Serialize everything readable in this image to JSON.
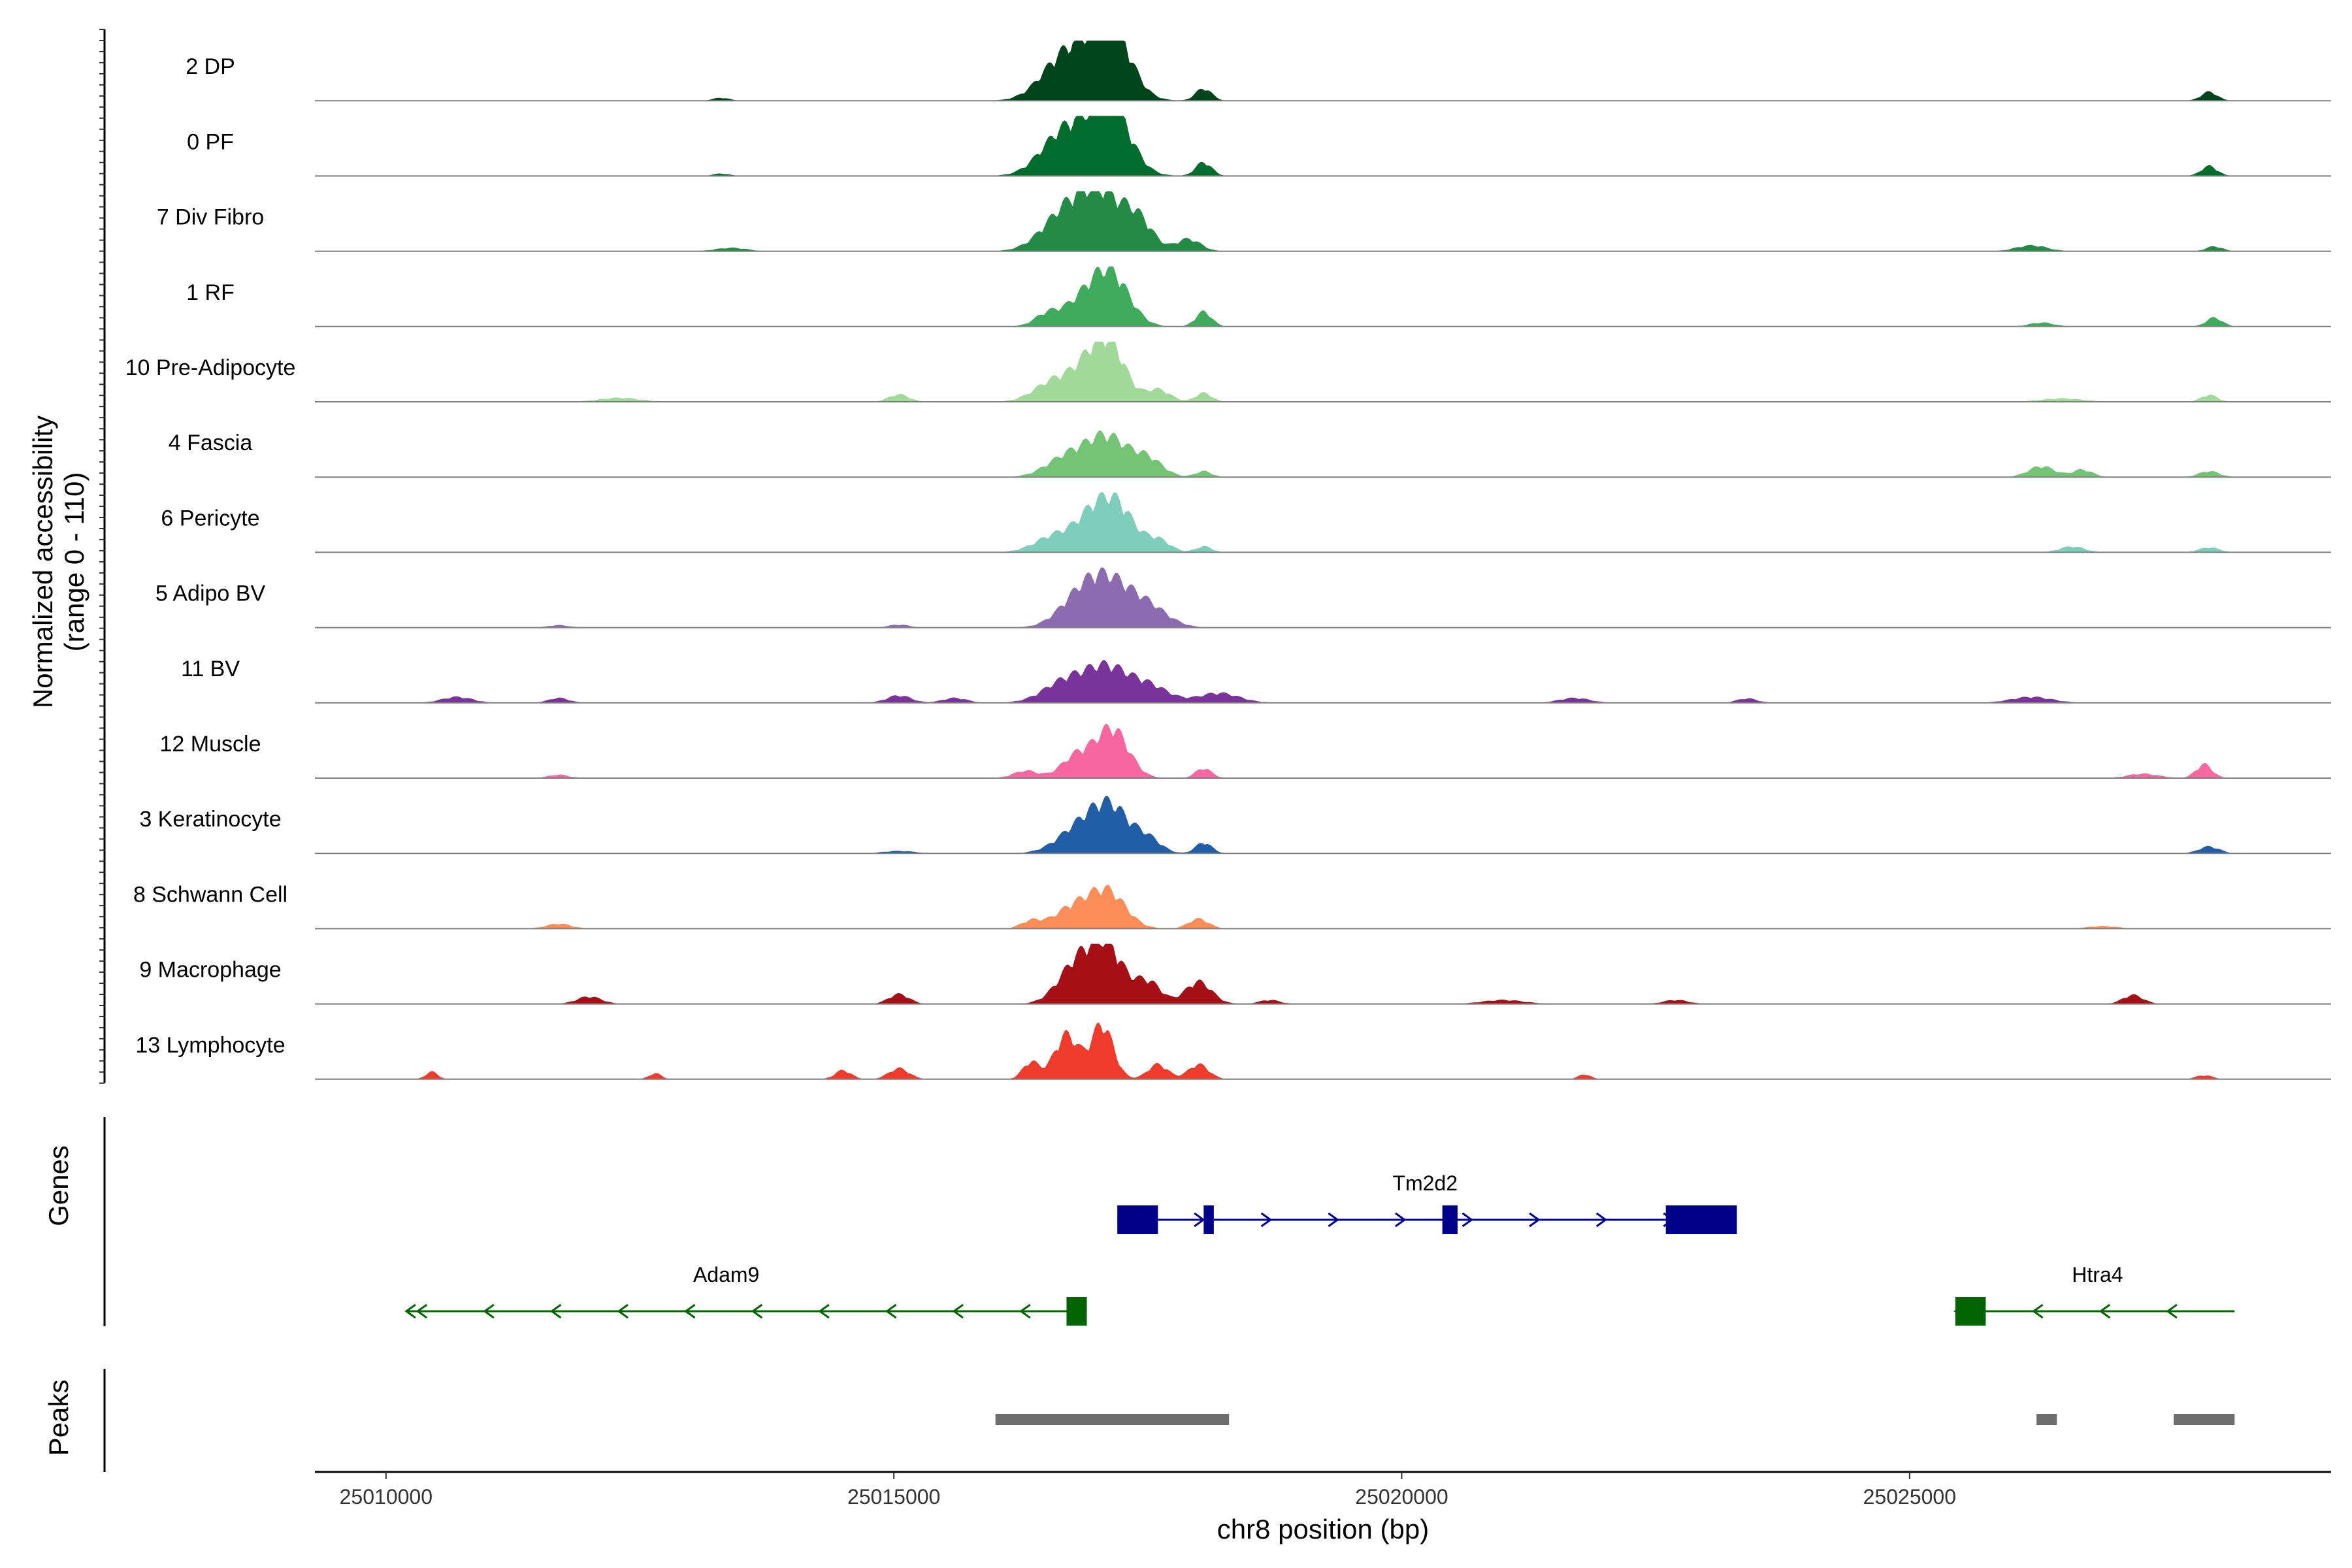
{
  "chart_data": {
    "type": "area",
    "ylabel_line1": "Normalized accessibility",
    "ylabel_line2": "(range 0 - 110)",
    "ylim": [
      0,
      110
    ],
    "xlabel": "chr8 position (bp)",
    "xlim": [
      25009300,
      25029150
    ],
    "x_range_data": [
      25010200,
      25028200
    ],
    "xticks": [
      {
        "value": 25010000,
        "label": "25010000"
      },
      {
        "value": 25015000,
        "label": "25015000"
      },
      {
        "value": 25020000,
        "label": "25020000"
      },
      {
        "value": 25025000,
        "label": "25025000"
      }
    ],
    "series": [
      {
        "name": "2 DP",
        "color": "#00441b",
        "peaks": [
          [
            25016900,
            95,
            280
          ],
          [
            25017150,
            100,
            180
          ],
          [
            25016600,
            35,
            200
          ],
          [
            25018050,
            25,
            80
          ],
          [
            25027950,
            18,
            80
          ],
          [
            25013300,
            6,
            80
          ]
        ]
      },
      {
        "name": "0 PF",
        "color": "#006d2c",
        "peaks": [
          [
            25016900,
            85,
            280
          ],
          [
            25017150,
            95,
            180
          ],
          [
            25016600,
            40,
            200
          ],
          [
            25018050,
            28,
            80
          ],
          [
            25027950,
            20,
            80
          ],
          [
            25013300,
            5,
            80
          ]
        ]
      },
      {
        "name": "7 Div Fibro",
        "color": "#238b45",
        "peaks": [
          [
            25016700,
            80,
            230
          ],
          [
            25017050,
            100,
            200
          ],
          [
            25017400,
            60,
            150
          ],
          [
            25017900,
            25,
            120
          ],
          [
            25026200,
            12,
            150
          ],
          [
            25028000,
            10,
            80
          ],
          [
            25013400,
            7,
            150
          ]
        ]
      },
      {
        "name": "1 RF",
        "color": "#41ab5d",
        "peaks": [
          [
            25016900,
            55,
            220
          ],
          [
            25017150,
            85,
            180
          ],
          [
            25016500,
            20,
            120
          ],
          [
            25018050,
            30,
            80
          ],
          [
            25028000,
            18,
            80
          ],
          [
            25026300,
            8,
            120
          ]
        ]
      },
      {
        "name": "10 Pre-Adipocyte",
        "color": "#a1d99b",
        "peaks": [
          [
            25016600,
            45,
            200
          ],
          [
            25016950,
            70,
            160
          ],
          [
            25017150,
            90,
            150
          ],
          [
            25017600,
            25,
            120
          ],
          [
            25018050,
            18,
            80
          ],
          [
            25015050,
            15,
            100
          ],
          [
            25012300,
            8,
            200
          ],
          [
            25027950,
            14,
            80
          ],
          [
            25026500,
            7,
            200
          ]
        ]
      },
      {
        "name": "4 Fascia",
        "color": "#74c476",
        "peaks": [
          [
            25016700,
            40,
            200
          ],
          [
            25017100,
            80,
            200
          ],
          [
            25017500,
            35,
            150
          ],
          [
            25018050,
            12,
            80
          ],
          [
            25026300,
            22,
            130
          ],
          [
            25026700,
            15,
            100
          ],
          [
            25027950,
            12,
            100
          ]
        ]
      },
      {
        "name": "6 Pericyte",
        "color": "#7fcdbb",
        "peaks": [
          [
            25016600,
            35,
            200
          ],
          [
            25016950,
            60,
            160
          ],
          [
            25017200,
            90,
            170
          ],
          [
            25017600,
            25,
            120
          ],
          [
            25018050,
            12,
            80
          ],
          [
            25026600,
            12,
            120
          ],
          [
            25027950,
            10,
            100
          ]
        ]
      },
      {
        "name": "5 Adipo BV",
        "color": "#8c6bb1",
        "peaks": [
          [
            25016800,
            45,
            200
          ],
          [
            25017100,
            90,
            220
          ],
          [
            25017500,
            40,
            200
          ],
          [
            25015050,
            6,
            100
          ],
          [
            25011700,
            5,
            100
          ]
        ]
      },
      {
        "name": "11 BV",
        "color": "#7a339a",
        "peaks": [
          [
            25016700,
            45,
            220
          ],
          [
            25017100,
            65,
            200
          ],
          [
            25017500,
            35,
            200
          ],
          [
            25018200,
            20,
            200
          ],
          [
            25015050,
            15,
            120
          ],
          [
            25015600,
            10,
            120
          ],
          [
            25010700,
            12,
            150
          ],
          [
            25011700,
            10,
            100
          ],
          [
            25021700,
            10,
            150
          ],
          [
            25026200,
            12,
            200
          ],
          [
            25023400,
            9,
            100
          ]
        ]
      },
      {
        "name": "12 Muscle",
        "color": "#f768a1",
        "peaks": [
          [
            25016800,
            45,
            150
          ],
          [
            25017150,
            100,
            160
          ],
          [
            25016300,
            15,
            120
          ],
          [
            25018050,
            20,
            80
          ],
          [
            25027900,
            28,
            80
          ],
          [
            25027300,
            9,
            150
          ],
          [
            25011700,
            7,
            100
          ]
        ]
      },
      {
        "name": "3 Keratinocyte",
        "color": "#225ea8",
        "peaks": [
          [
            25016850,
            55,
            220
          ],
          [
            25017150,
            80,
            180
          ],
          [
            25017500,
            28,
            130
          ],
          [
            25018050,
            22,
            80
          ],
          [
            25027950,
            14,
            100
          ],
          [
            25015050,
            5,
            150
          ]
        ]
      },
      {
        "name": "8 Schwann Cell",
        "color": "#fc8d59",
        "peaks": [
          [
            25016750,
            40,
            180
          ],
          [
            25017100,
            75,
            180
          ],
          [
            25016350,
            15,
            100
          ],
          [
            25018000,
            20,
            100
          ],
          [
            25011700,
            10,
            120
          ],
          [
            25026900,
            5,
            150
          ]
        ]
      },
      {
        "name": "9 Macrophage",
        "color": "#a50f15",
        "peaks": [
          [
            25016800,
            80,
            180
          ],
          [
            25017100,
            110,
            160
          ],
          [
            25017500,
            45,
            130
          ],
          [
            25018000,
            45,
            130
          ],
          [
            25015050,
            20,
            100
          ],
          [
            25012000,
            15,
            120
          ],
          [
            25027200,
            18,
            100
          ],
          [
            25018700,
            8,
            100
          ],
          [
            25021000,
            8,
            200
          ],
          [
            25022700,
            8,
            120
          ]
        ]
      },
      {
        "name": "13 Lymphocyte",
        "color": "#ef3b2c",
        "peaks": [
          [
            25016700,
            90,
            120
          ],
          [
            25017050,
            110,
            110
          ],
          [
            25016350,
            35,
            80
          ],
          [
            25017600,
            30,
            100
          ],
          [
            25018000,
            30,
            100
          ],
          [
            25015050,
            22,
            100
          ],
          [
            25014500,
            18,
            80
          ],
          [
            25010450,
            15,
            60
          ],
          [
            25012650,
            12,
            60
          ],
          [
            25021800,
            10,
            60
          ],
          [
            25027900,
            8,
            80
          ]
        ]
      }
    ],
    "genes": [
      {
        "name": "Tm2d2",
        "start": 25017200,
        "end": 25023300,
        "strand": "+",
        "color": "#00008b",
        "row": 0,
        "label_pos": 25020230,
        "exons": [
          [
            25017200,
            25017600
          ],
          [
            25018050,
            25018150
          ],
          [
            25020400,
            25020550
          ],
          [
            25022600,
            25023300
          ]
        ]
      },
      {
        "name": "Adam9",
        "start": 25010200,
        "end": 25016900,
        "strand": "-",
        "color": "#006400",
        "row": 1,
        "label_pos": 25013350,
        "exons": [
          [
            25016700,
            25016900
          ]
        ]
      },
      {
        "name": "Htra4",
        "start": 25025450,
        "end": 25028200,
        "strand": "-",
        "color": "#006400",
        "row": 1,
        "label_pos": 25026850,
        "exons": [
          [
            25025450,
            25025750
          ]
        ]
      }
    ],
    "peaks_track": [
      [
        25016000,
        25018300
      ],
      [
        25026250,
        25026450
      ],
      [
        25027600,
        25028200
      ]
    ],
    "panel_labels": {
      "genes": "Genes",
      "peaks": "Peaks"
    }
  }
}
